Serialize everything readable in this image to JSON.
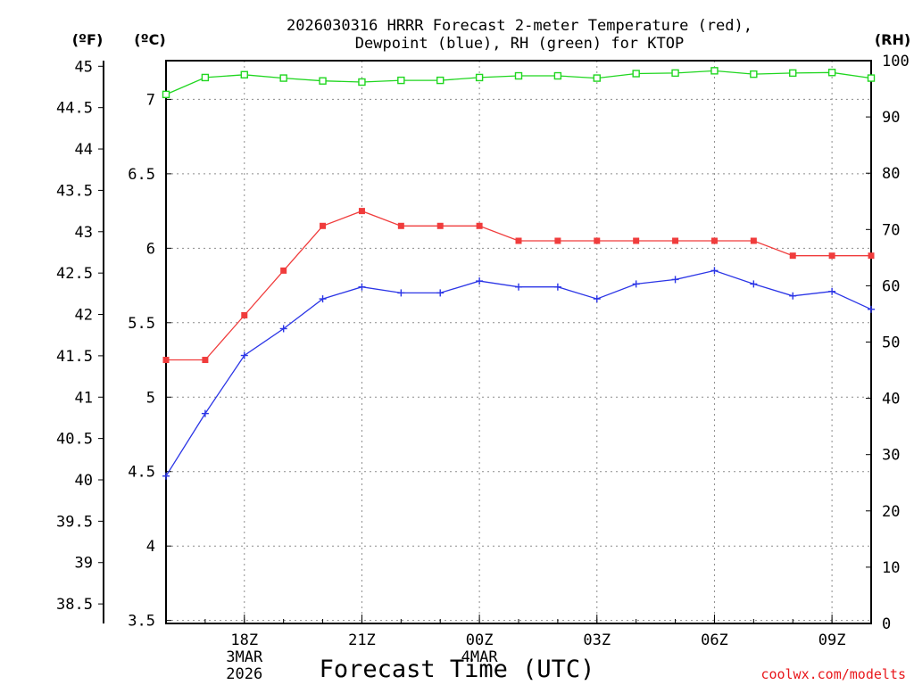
{
  "chart_data": {
    "type": "line",
    "title": [
      "2026030316 HRRR Forecast 2-meter Temperature (red),",
      "Dewpoint (blue), RH (green) for KTOP"
    ],
    "xlabel": "Forecast Time (UTC)",
    "credit": "coolwx.com/modelts",
    "unit_labels": {
      "fahrenheit": "(ºF)",
      "celsius": "(ºC)",
      "rh": "(RH)"
    },
    "x_hours": [
      16,
      17,
      18,
      19,
      20,
      21,
      22,
      23,
      24,
      25,
      26,
      27,
      28,
      29,
      30,
      31,
      32,
      33,
      34
    ],
    "xlim": [
      16,
      34
    ],
    "x_ticks": [
      {
        "hour": 18,
        "label": "18Z",
        "sub": [
          "3MAR",
          "2026"
        ]
      },
      {
        "hour": 21,
        "label": "21Z",
        "sub": []
      },
      {
        "hour": 24,
        "label": "00Z",
        "sub": [
          "4MAR"
        ]
      },
      {
        "hour": 27,
        "label": "03Z",
        "sub": []
      },
      {
        "hour": 30,
        "label": "06Z",
        "sub": []
      },
      {
        "hour": 33,
        "label": "09Z",
        "sub": []
      }
    ],
    "celsius_axis": {
      "range": [
        3.48,
        7.26
      ],
      "ticks": [
        "3.5",
        "4",
        "4.5",
        "5",
        "5.5",
        "6",
        "6.5",
        "7"
      ]
    },
    "fahrenheit_axis": {
      "ticks": [
        "38.5",
        "39",
        "39.5",
        "40",
        "40.5",
        "41",
        "41.5",
        "42",
        "42.5",
        "43",
        "43.5",
        "44",
        "44.5",
        "45"
      ]
    },
    "rh_axis": {
      "range": [
        0,
        100
      ],
      "ticks": [
        "0",
        "10",
        "20",
        "30",
        "40",
        "50",
        "60",
        "70",
        "80",
        "90",
        "100"
      ]
    },
    "series": [
      {
        "name": "Temperature",
        "axis": "celsius",
        "color": "#f03c3c",
        "marker": "filled-square",
        "values": [
          5.25,
          5.25,
          5.55,
          5.85,
          6.15,
          6.25,
          6.15,
          6.15,
          6.15,
          6.05,
          6.05,
          6.05,
          6.05,
          6.05,
          6.05,
          6.05,
          5.95,
          5.95,
          5.95
        ]
      },
      {
        "name": "Dewpoint",
        "axis": "celsius",
        "color": "#2b35e6",
        "marker": "plus",
        "values": [
          4.47,
          4.89,
          5.28,
          5.46,
          5.66,
          5.74,
          5.7,
          5.7,
          5.78,
          5.74,
          5.74,
          5.66,
          5.76,
          5.79,
          5.85,
          5.76,
          5.68,
          5.71,
          5.59
        ]
      },
      {
        "name": "RH",
        "axis": "rh",
        "color": "#1fd61f",
        "marker": "open-square",
        "values": [
          94,
          97,
          97.5,
          96.9,
          96.4,
          96.2,
          96.5,
          96.5,
          97,
          97.3,
          97.3,
          96.9,
          97.7,
          97.8,
          98.2,
          97.6,
          97.8,
          97.9,
          96.9
        ]
      }
    ]
  }
}
